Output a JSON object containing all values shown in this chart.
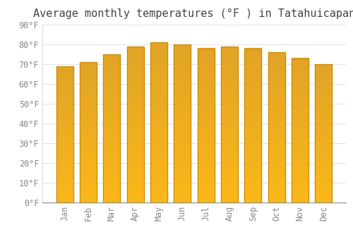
{
  "title": "Average monthly temperatures (°F ) in Tatahuicapan",
  "months": [
    "Jan",
    "Feb",
    "Mar",
    "Apr",
    "May",
    "Jun",
    "Jul",
    "Aug",
    "Sep",
    "Oct",
    "Nov",
    "Dec"
  ],
  "values": [
    69,
    71,
    75,
    79,
    81,
    80,
    78,
    79,
    78,
    76,
    73,
    70
  ],
  "bar_color_top": "#F5A800",
  "bar_color_bottom": "#FFC84A",
  "bar_edge_color": "#CC8800",
  "background_color": "#FFFFFF",
  "grid_color": "#DDDDDD",
  "ylim": [
    0,
    90
  ],
  "yticks": [
    0,
    10,
    20,
    30,
    40,
    50,
    60,
    70,
    80,
    90
  ],
  "title_fontsize": 11,
  "tick_fontsize": 8.5,
  "tick_label_color": "#888888",
  "title_color": "#444444"
}
